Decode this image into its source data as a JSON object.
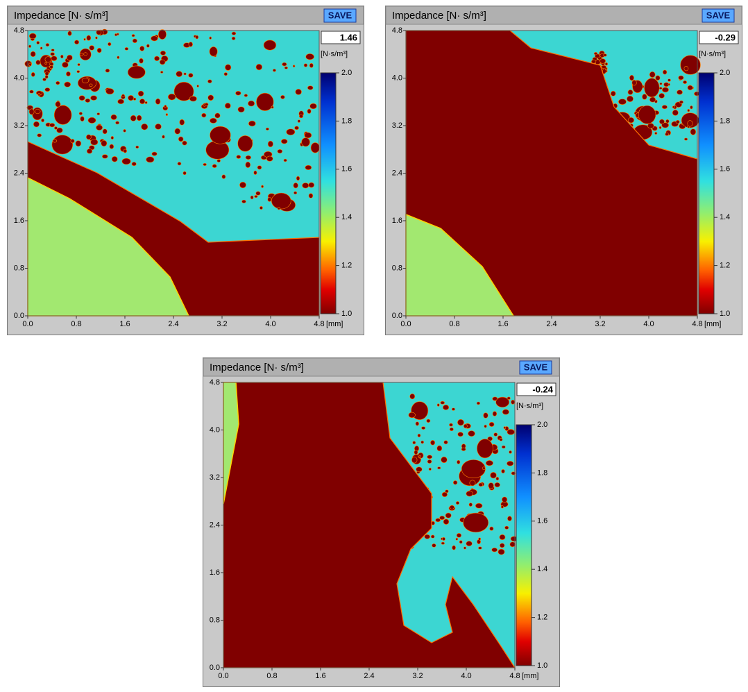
{
  "axes": {
    "x_ticks": [
      "0.0",
      "0.8",
      "1.6",
      "2.4",
      "3.2",
      "4.0",
      "4.8"
    ],
    "x_unit": "[mm]",
    "y_ticks": [
      "4.8",
      "4.0",
      "3.2",
      "2.4",
      "1.6",
      "0.8",
      "0.0"
    ],
    "colorbar_ticks": [
      "2.0",
      "1.8",
      "1.6",
      "1.4",
      "1.2",
      "1.0"
    ]
  },
  "panels": [
    {
      "title": "Impedance [N· s/m³]",
      "button": "SAVE",
      "value": "1.46",
      "unit": "[N·s/m³]"
    },
    {
      "title": "Impedance [N· s/m³]",
      "button": "SAVE",
      "value": "-0.29",
      "unit": "[N·s/m³]"
    },
    {
      "title": "Impedance [N· s/m³]",
      "button": "SAVE",
      "value": "-0.24",
      "unit": "[N·s/m³]"
    }
  ]
}
